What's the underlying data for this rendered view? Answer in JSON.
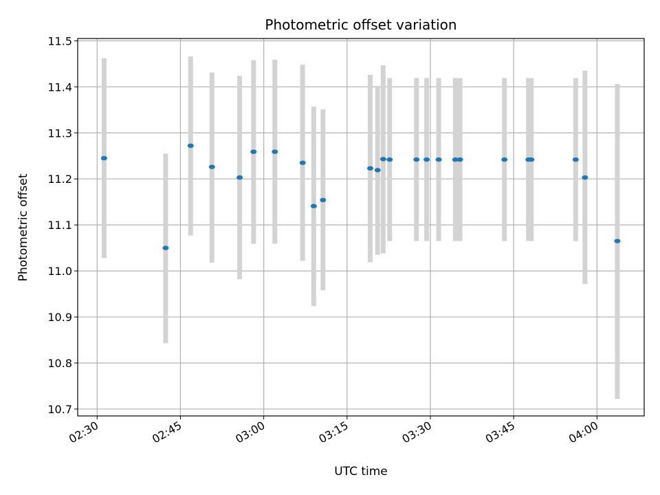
{
  "chart_data": {
    "type": "scatter",
    "title": "Photometric offset variation",
    "xlabel": "UTC time",
    "ylabel": "Photometric offset",
    "x_ticks": [
      "02:30",
      "02:45",
      "03:00",
      "03:15",
      "03:30",
      "03:45",
      "04:00"
    ],
    "y_ticks": [
      "10.7",
      "10.8",
      "10.9",
      "11.0",
      "11.1",
      "11.2",
      "11.3",
      "11.4",
      "11.5"
    ],
    "xlim": [
      "02:26:30",
      "04:08:30"
    ],
    "ylim": [
      10.685,
      11.505
    ],
    "grid": true,
    "error_bar_color": "#d3d3d3",
    "point_color": "#1f77b4",
    "points": [
      {
        "time": "02:31:15",
        "offset": 11.245,
        "low": 11.028,
        "high": 11.462
      },
      {
        "time": "02:42:20",
        "offset": 11.05,
        "low": 10.843,
        "high": 11.255
      },
      {
        "time": "02:46:50",
        "offset": 11.272,
        "low": 11.077,
        "high": 11.466
      },
      {
        "time": "02:50:40",
        "offset": 11.226,
        "low": 11.018,
        "high": 11.431
      },
      {
        "time": "02:55:40",
        "offset": 11.203,
        "low": 10.982,
        "high": 11.424
      },
      {
        "time": "02:58:10",
        "offset": 11.259,
        "low": 11.059,
        "high": 11.458
      },
      {
        "time": "03:02:00",
        "offset": 11.259,
        "low": 11.059,
        "high": 11.459
      },
      {
        "time": "03:07:00",
        "offset": 11.235,
        "low": 11.022,
        "high": 11.448
      },
      {
        "time": "03:09:00",
        "offset": 11.141,
        "low": 10.924,
        "high": 11.357
      },
      {
        "time": "03:10:40",
        "offset": 11.154,
        "low": 10.958,
        "high": 11.351
      },
      {
        "time": "03:19:10",
        "offset": 11.223,
        "low": 11.019,
        "high": 11.426
      },
      {
        "time": "03:20:30",
        "offset": 11.219,
        "low": 11.035,
        "high": 11.402
      },
      {
        "time": "03:21:30",
        "offset": 11.243,
        "low": 11.038,
        "high": 11.447
      },
      {
        "time": "03:22:40",
        "offset": 11.242,
        "low": 11.065,
        "high": 11.419
      },
      {
        "time": "03:27:30",
        "offset": 11.242,
        "low": 11.065,
        "high": 11.419
      },
      {
        "time": "03:29:20",
        "offset": 11.242,
        "low": 11.065,
        "high": 11.419
      },
      {
        "time": "03:31:30",
        "offset": 11.242,
        "low": 11.065,
        "high": 11.419
      },
      {
        "time": "03:34:30",
        "offset": 11.242,
        "low": 11.065,
        "high": 11.419
      },
      {
        "time": "03:35:20",
        "offset": 11.242,
        "low": 11.065,
        "high": 11.419
      },
      {
        "time": "03:43:20",
        "offset": 11.242,
        "low": 11.065,
        "high": 11.419
      },
      {
        "time": "03:47:40",
        "offset": 11.242,
        "low": 11.065,
        "high": 11.419
      },
      {
        "time": "03:48:10",
        "offset": 11.242,
        "low": 11.065,
        "high": 11.419
      },
      {
        "time": "03:56:10",
        "offset": 11.242,
        "low": 11.065,
        "high": 11.419
      },
      {
        "time": "03:57:50",
        "offset": 11.203,
        "low": 10.972,
        "high": 11.435
      },
      {
        "time": "04:03:40",
        "offset": 11.065,
        "low": 10.722,
        "high": 11.406
      }
    ]
  }
}
